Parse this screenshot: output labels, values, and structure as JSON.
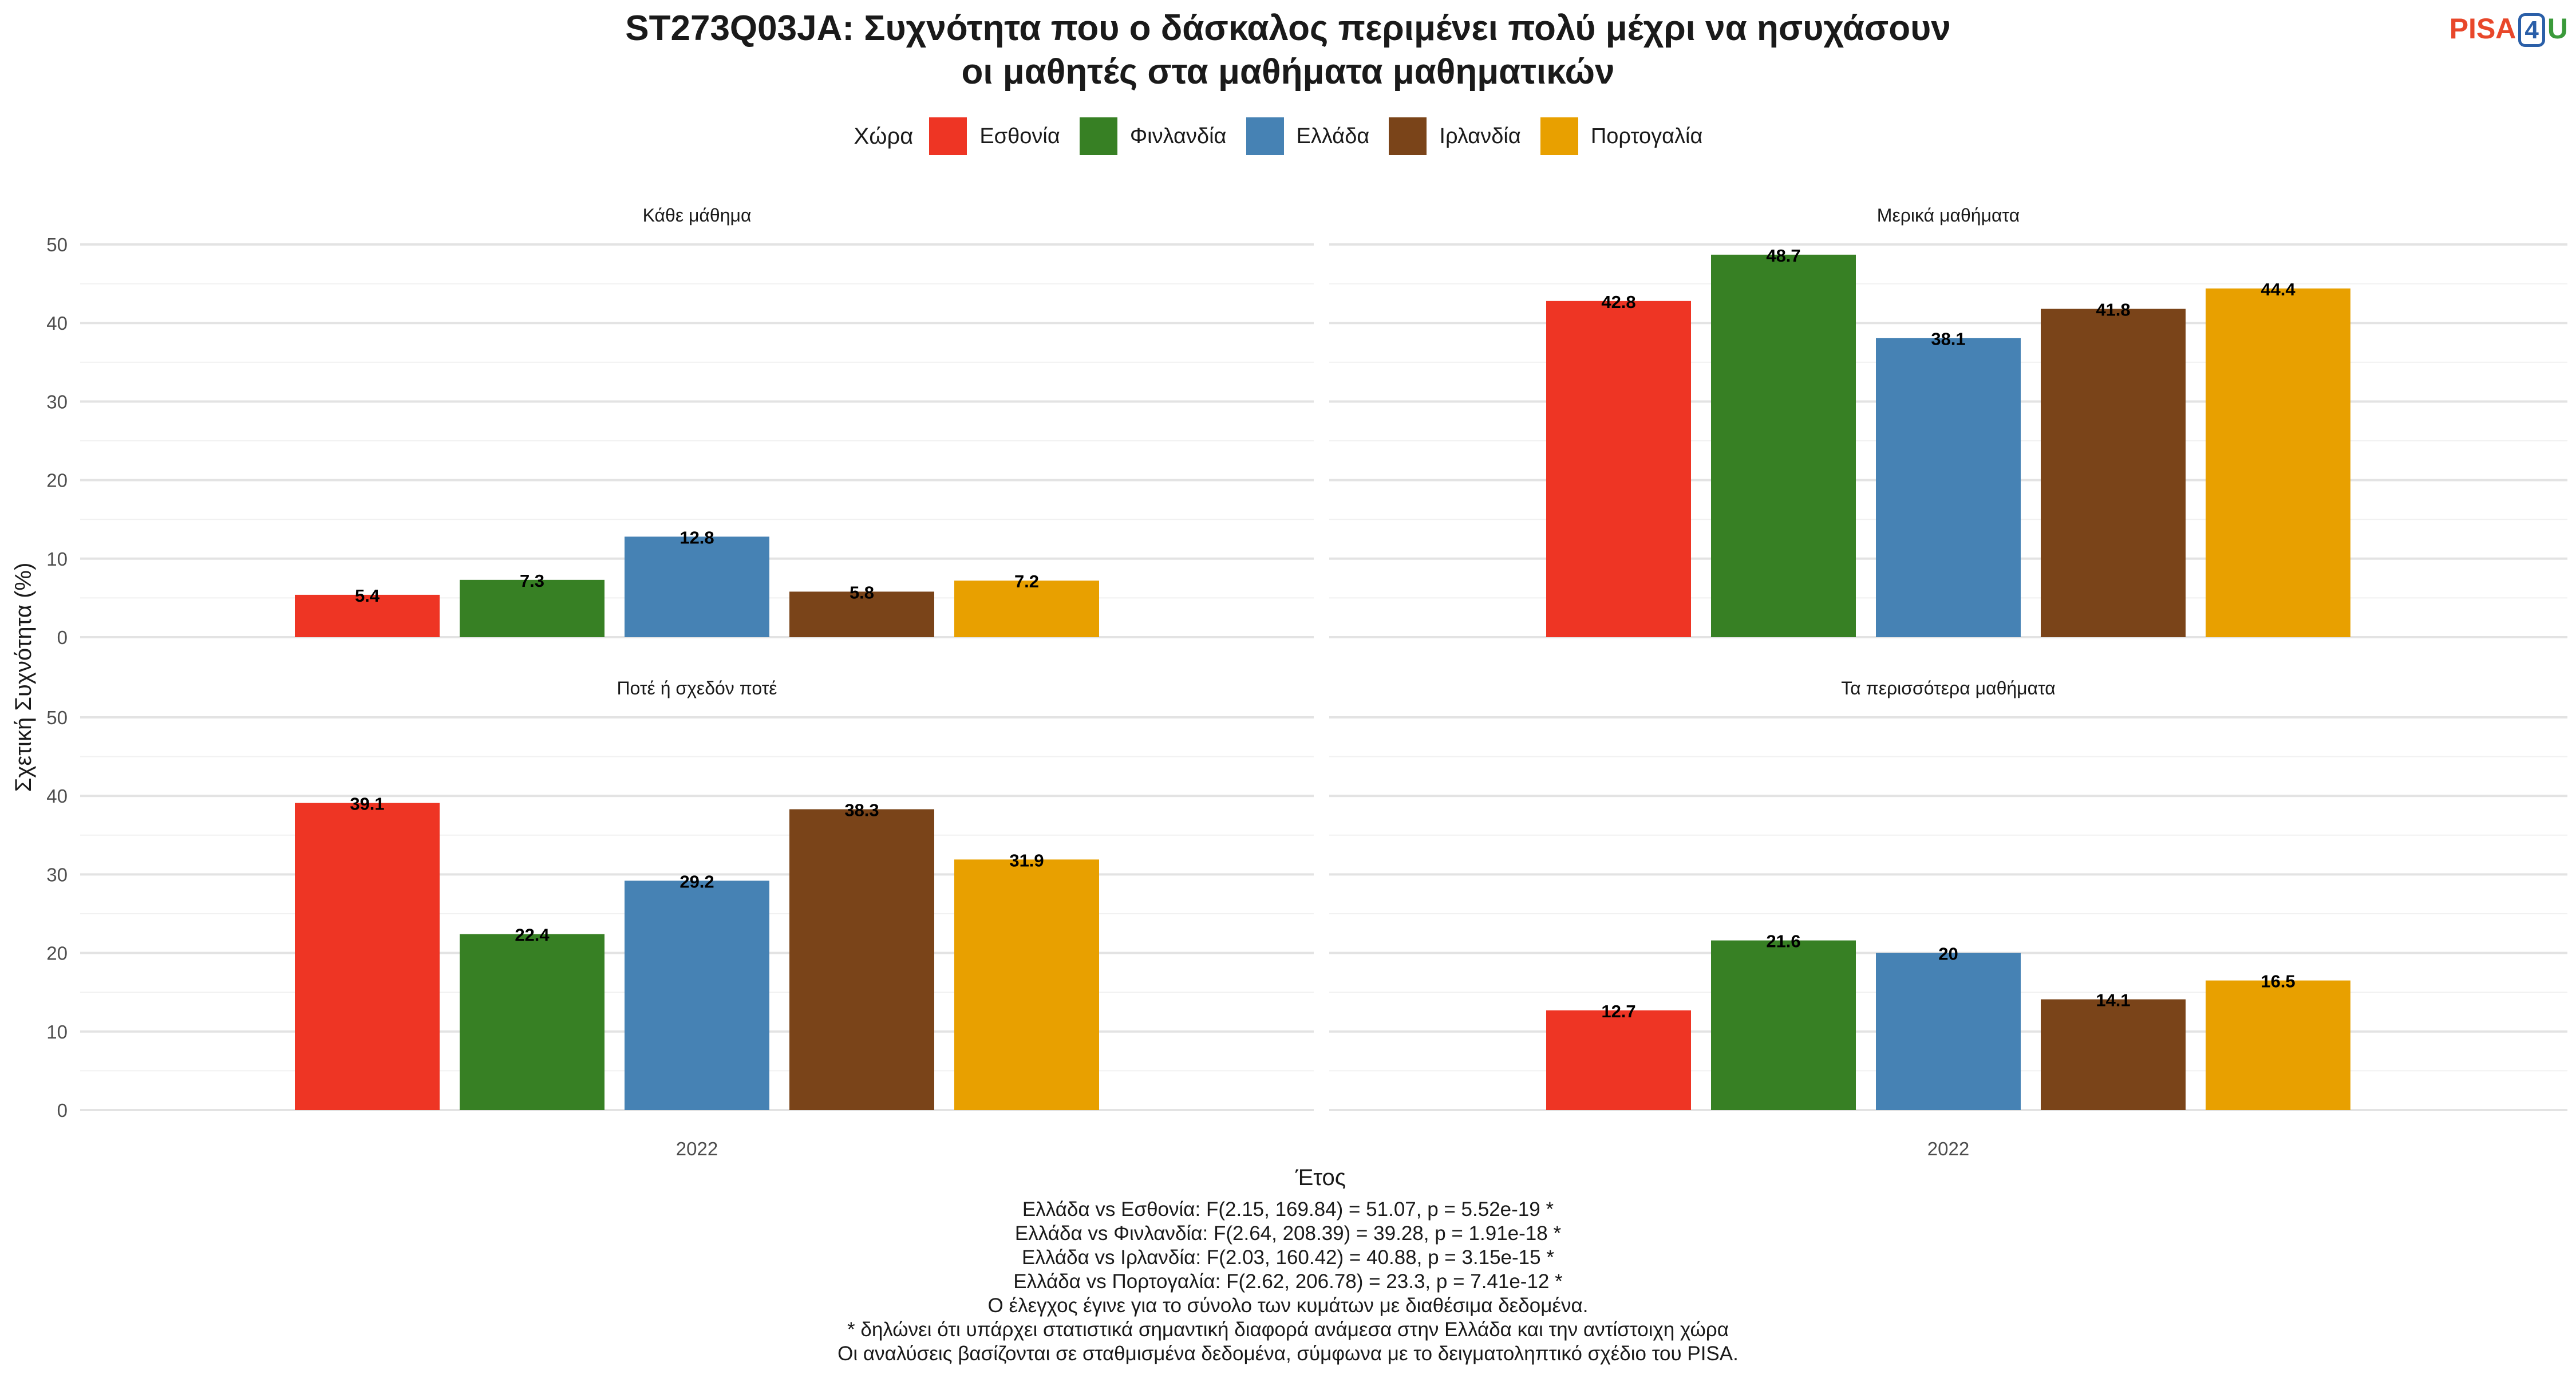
{
  "title_line1": "ST273Q03JA: Συχνότητα που ο δάσκαλος περιμένει πολύ μέχρι να ησυχάσουν",
  "title_line2": "οι μαθητές στα μαθήματα μαθηματικών",
  "logo": {
    "part1": "PISA",
    "part2": "4",
    "part3": "U"
  },
  "legend": {
    "title": "Χώρα"
  },
  "notes": [
    "Ελλάδα vs Εσθονία: F(2.15, 169.84) = 51.07, p = 5.52e-19 *",
    "Ελλάδα vs Φινλανδία: F(2.64, 208.39) = 39.28, p = 1.91e-18 *",
    "Ελλάδα vs Ιρλανδία: F(2.03, 160.42) = 40.88, p = 3.15e-15 *",
    "Ελλάδα vs Πορτογαλία: F(2.62, 206.78) = 23.3, p = 7.41e-12 *",
    "Ο έλεγχος έγινε για το σύνολο των κυμάτων με διαθέσιμα δεδομένα.",
    "* δηλώνει ότι υπάρχει στατιστικά σημαντική διαφορά ανάμεσα στην Ελλάδα και την αντίστοιχη χώρα",
    "Οι αναλύσεις βασίζονται σε σταθμισμένα δεδομένα, σύμφωνα με το δειγματοληπτικό σχέδιο του PISA."
  ],
  "chart_data": {
    "type": "bar",
    "xlabel": "Έτος",
    "ylabel": "Σχετική Συχνότητα (%)",
    "ylim": [
      0,
      50
    ],
    "yticks": [
      0,
      10,
      20,
      30,
      40,
      50
    ],
    "grid": true,
    "legend_position": "top",
    "categories": [
      "2022"
    ],
    "series": [
      {
        "name": "Εσθονία",
        "color": "#EE3524"
      },
      {
        "name": "Φινλανδία",
        "color": "#378024"
      },
      {
        "name": "Ελλάδα",
        "color": "#4682B4"
      },
      {
        "name": "Ιρλανδία",
        "color": "#7A4419"
      },
      {
        "name": "Πορτογαλία",
        "color": "#E8A000"
      }
    ],
    "panels": [
      {
        "title": "Κάθε μάθημα",
        "values": [
          5.4,
          7.3,
          12.8,
          5.8,
          7.2
        ],
        "labels": [
          "5.4",
          "7.3",
          "12.8",
          "5.8",
          "7.2"
        ]
      },
      {
        "title": "Μερικά μαθήματα",
        "values": [
          42.8,
          48.7,
          38.1,
          41.8,
          44.4
        ],
        "labels": [
          "42.8",
          "48.7",
          "38.1",
          "41.8",
          "44.4"
        ]
      },
      {
        "title": "Ποτέ ή σχεδόν ποτέ",
        "values": [
          39.1,
          22.4,
          29.2,
          38.3,
          31.9
        ],
        "labels": [
          "39.1",
          "22.4",
          "29.2",
          "38.3",
          "31.9"
        ]
      },
      {
        "title": "Τα περισσότερα μαθήματα",
        "values": [
          12.7,
          21.6,
          20,
          14.1,
          16.5
        ],
        "labels": [
          "12.7",
          "21.6",
          "20",
          "14.1",
          "16.5"
        ]
      }
    ]
  }
}
